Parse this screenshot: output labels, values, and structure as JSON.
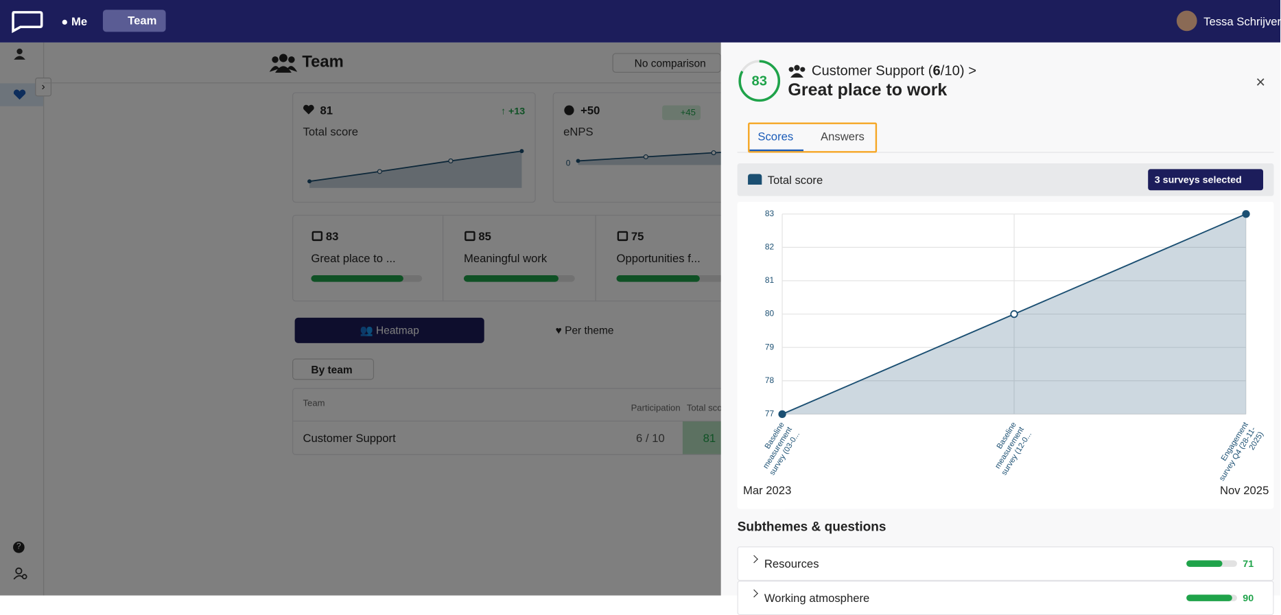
{
  "nav": {
    "items": [
      "Me",
      "Team"
    ],
    "user": "Tessa Schrijver"
  },
  "page": {
    "title": "Team",
    "comparison": "No comparison",
    "cards": [
      {
        "score": 81,
        "delta": "+13",
        "label": "Total score"
      },
      {
        "score": "+50",
        "badge": "+45",
        "label": "eNPS",
        "axis_label": "0"
      }
    ],
    "themes": [
      {
        "score": 83,
        "label": "Great place to ..."
      },
      {
        "score": 85,
        "label": "Meaningful work"
      },
      {
        "score": 75,
        "label": "Opportunities f..."
      }
    ],
    "view_tabs": [
      "Heatmap",
      "Per theme"
    ],
    "group_by": "By team",
    "table": {
      "headers": [
        "Team",
        "Participation",
        "Total sco"
      ],
      "rows": [
        [
          "Customer Support",
          "6 / 10",
          "81"
        ]
      ]
    }
  },
  "drawer": {
    "score": 83,
    "breadcrumb": [
      "Customer Support (",
      "6",
      "/10) >"
    ],
    "title": "Great place to work",
    "tabs": [
      "Scores",
      "Answers"
    ],
    "survey_select": "3 surveys selected",
    "range_start": "Mar 2023",
    "range_end": "Nov 2025",
    "section_title": "Subthemes & questions",
    "subthemes": [
      {
        "name": "Resources",
        "score": 71
      },
      {
        "name": "Working atmosphere",
        "score": 90
      }
    ]
  },
  "chart_data": {
    "type": "line",
    "series": [
      {
        "name": "Total score",
        "color": "#1b4f72",
        "values": [
          77,
          80,
          83
        ]
      }
    ],
    "categories": [
      "Baseline measurement survey (03-0...",
      "Baseline measurement survey (12-0...",
      "Engagement survey Q4 (28-11-2025)"
    ],
    "ylim": [
      77,
      83
    ],
    "yticks": [
      77,
      78,
      79,
      80,
      81,
      82,
      83
    ],
    "grid": true
  }
}
